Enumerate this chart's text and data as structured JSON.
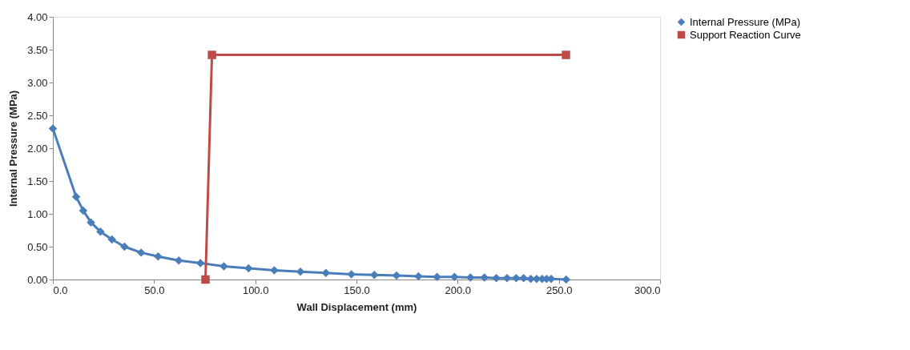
{
  "chart_data": {
    "type": "line",
    "xlabel": "Wall Displacement (mm)",
    "ylabel": "Internal Pressure (MPa)",
    "xlim": [
      0,
      300
    ],
    "ylim": [
      0,
      4
    ],
    "xticks": [
      {
        "value": 0,
        "label": "0.0"
      },
      {
        "value": 50,
        "label": "50.0"
      },
      {
        "value": 100,
        "label": "100.0"
      },
      {
        "value": 150,
        "label": "150.0"
      },
      {
        "value": 200,
        "label": "200.0"
      },
      {
        "value": 250,
        "label": "250.0"
      },
      {
        "value": 300,
        "label": "300.0"
      }
    ],
    "yticks": [
      {
        "value": 0,
        "label": "0.00"
      },
      {
        "value": 0.5,
        "label": "0.50"
      },
      {
        "value": 1,
        "label": "1.00"
      },
      {
        "value": 1.5,
        "label": "1.50"
      },
      {
        "value": 2,
        "label": "2.00"
      },
      {
        "value": 2.5,
        "label": "2.50"
      },
      {
        "value": 3,
        "label": "3.00"
      },
      {
        "value": 3.5,
        "label": "3.50"
      },
      {
        "value": 4,
        "label": "4.00"
      }
    ],
    "grid": false,
    "legend": "right",
    "series": [
      {
        "name": "Internal Pressure (MPa)",
        "color": "#4a7ebb",
        "marker": "diamond",
        "x": [
          0,
          11.5,
          15.0,
          18.8,
          23.5,
          29.2,
          35.4,
          43.6,
          52.0,
          62.2,
          72.9,
          84.5,
          96.7,
          109.4,
          122.3,
          134.9,
          147.5,
          158.8,
          169.8,
          180.6,
          189.8,
          198.4,
          206.3,
          213.2,
          219.1,
          224.4,
          228.9,
          232.6,
          236.1,
          239.0,
          241.7,
          243.9,
          246.2,
          253.6
        ],
        "values": [
          2.3,
          1.26,
          1.05,
          0.87,
          0.73,
          0.61,
          0.5,
          0.41,
          0.35,
          0.29,
          0.25,
          0.2,
          0.17,
          0.14,
          0.12,
          0.1,
          0.08,
          0.07,
          0.06,
          0.05,
          0.04,
          0.04,
          0.03,
          0.03,
          0.02,
          0.02,
          0.02,
          0.02,
          0.01,
          0.01,
          0.01,
          0.01,
          0.01,
          0.0
        ]
      },
      {
        "name": "Support Reaction Curve",
        "color": "#be4b48",
        "marker": "square",
        "x": [
          75.4,
          78.6,
          253.5
        ],
        "values": [
          0.0,
          3.42,
          3.42
        ]
      }
    ]
  }
}
